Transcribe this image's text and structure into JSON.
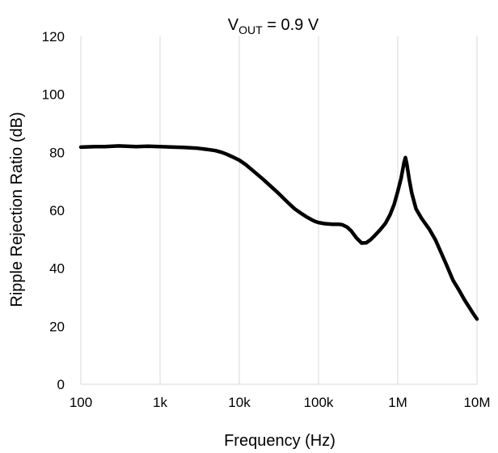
{
  "chart_data": {
    "type": "line",
    "title_main": "V",
    "title_sub": "OUT",
    "title_rest": " = 0.9 V",
    "xlabel": "Frequency (Hz)",
    "ylabel": "Ripple Rejection Ratio (dB)",
    "x_scale": "log",
    "xlim": [
      100,
      10000000
    ],
    "ylim": [
      0,
      120
    ],
    "x_ticks": [
      100,
      1000,
      10000,
      100000,
      1000000,
      10000000
    ],
    "x_tick_labels": [
      "100",
      "1k",
      "10k",
      "100k",
      "1M",
      "10M"
    ],
    "y_ticks": [
      0,
      20,
      40,
      60,
      80,
      100,
      120
    ],
    "y_tick_labels": [
      "0",
      "20",
      "40",
      "60",
      "80",
      "100",
      "120"
    ],
    "grid": {
      "vertical": true,
      "horizontal": false
    },
    "legend": "none",
    "line_color": "#000000",
    "series": [
      {
        "x": [
          100,
          150,
          200,
          300,
          500,
          700,
          1000,
          1500,
          2000,
          3000,
          4000,
          5000,
          6000,
          7000,
          8000,
          10000,
          12000,
          15000,
          20000,
          30000,
          40000,
          50000,
          60000,
          70000,
          80000,
          90000,
          100000,
          120000,
          150000,
          180000,
          200000,
          230000,
          260000,
          300000,
          350000,
          400000,
          450000,
          500000,
          600000,
          700000,
          800000,
          900000,
          1000000,
          1100000,
          1200000,
          1250000,
          1300000,
          1400000,
          1500000,
          1700000,
          2000000,
          2500000,
          3000000,
          4000000,
          5000000,
          6000000,
          7000000,
          8000000,
          9000000,
          10000000
        ],
        "y": [
          81.8,
          82,
          82,
          82.2,
          82,
          82.1,
          82,
          81.8,
          81.7,
          81.4,
          81,
          80.6,
          80,
          79.3,
          78.6,
          77.3,
          75.8,
          73.6,
          70.7,
          66.3,
          63,
          60.5,
          59,
          57.8,
          56.9,
          56.2,
          55.8,
          55.4,
          55.2,
          55.2,
          55,
          54.2,
          52.8,
          50.5,
          48.7,
          48.8,
          49.8,
          51,
          53.3,
          55.5,
          58.5,
          62,
          66.5,
          71,
          76.5,
          78.2,
          76,
          70.5,
          66,
          60.5,
          57.2,
          53.5,
          49.7,
          42,
          35.8,
          32.2,
          29,
          26.5,
          24.3,
          22.5
        ]
      }
    ]
  }
}
